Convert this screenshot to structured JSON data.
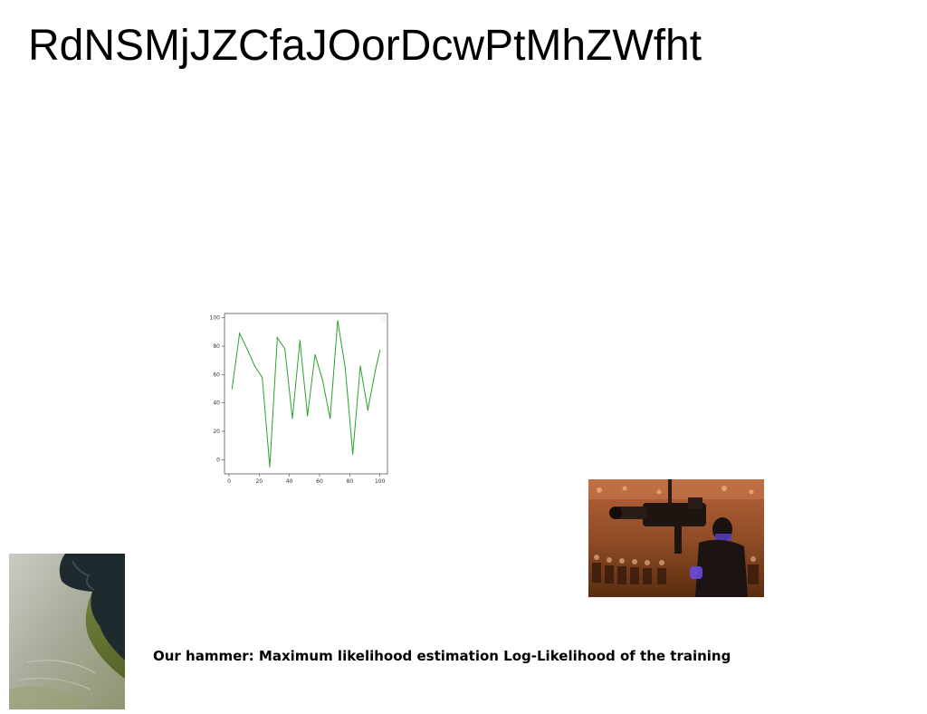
{
  "slide": {
    "title": "RdNSMjJZCfaJOorDcwPtMhZWfht",
    "caption": "Our hammer: Maximum likelihood estimation Log-Likelihood of the training"
  },
  "images": {
    "camera_photo": "camera-operator-photo",
    "shore_photo": "rocky-shoreline-photo"
  },
  "chart_data": {
    "type": "line",
    "x": [
      2,
      7,
      12,
      17,
      22,
      27,
      32,
      37,
      42,
      47,
      52,
      57,
      62,
      67,
      72,
      77,
      82,
      87,
      92,
      97,
      100
    ],
    "series": [
      {
        "color": "#2ca02c",
        "values": [
          50,
          89,
          78,
          66,
          58,
          -5,
          86,
          78,
          29,
          84,
          31,
          74,
          56,
          29,
          98,
          65,
          4,
          66,
          35,
          63,
          77
        ]
      }
    ],
    "xticks": [
      "0",
      "20",
      "40",
      "60",
      "80",
      "100"
    ],
    "yticks": [
      "0",
      "20",
      "40",
      "60",
      "80",
      "100"
    ],
    "xlim": [
      -3,
      105
    ],
    "ylim": [
      -10,
      103
    ],
    "grid": false,
    "title": "",
    "xlabel": "",
    "ylabel": ""
  }
}
